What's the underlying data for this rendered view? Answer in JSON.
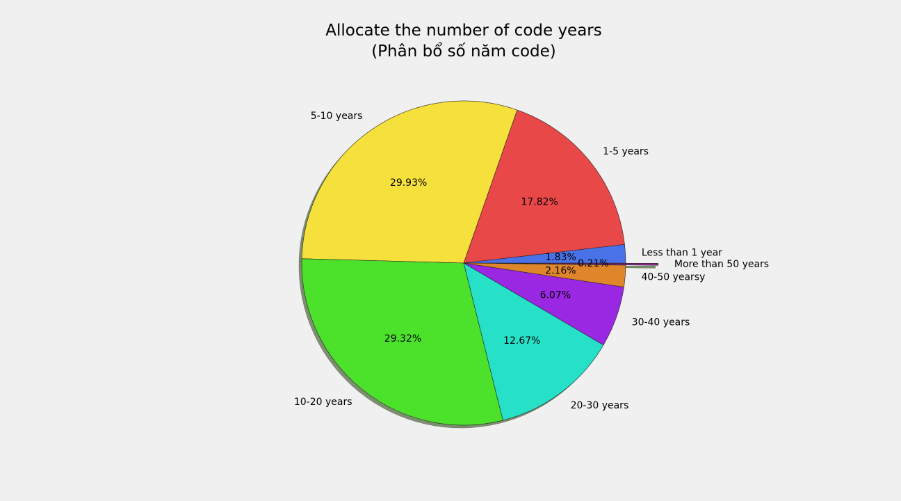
{
  "chart_data": {
    "type": "pie",
    "title": "Allocate the number of code years",
    "subtitle": "(Phân bổ số năm code)",
    "start_angle_deg": 0,
    "direction": "counterclockwise",
    "shadow": true,
    "slices": [
      {
        "label": "Less than 1 year",
        "value": 1.83,
        "pct_label": "1.83%",
        "color": "#4a72e8",
        "explode": 0
      },
      {
        "label": "1-5 years",
        "value": 17.82,
        "pct_label": "17.82%",
        "color": "#e84848",
        "explode": 0
      },
      {
        "label": "5-10 years",
        "value": 29.93,
        "pct_label": "29.93%",
        "color": "#f5e03c",
        "explode": 0
      },
      {
        "label": "10-20 years",
        "value": 29.32,
        "pct_label": "29.32%",
        "color": "#4ce22c",
        "explode": 0
      },
      {
        "label": "20-30 years",
        "value": 12.67,
        "pct_label": "12.67%",
        "color": "#26e0c8",
        "explode": 0
      },
      {
        "label": "30-40 years",
        "value": 6.07,
        "pct_label": "6.07%",
        "color": "#9a28e2",
        "explode": 0
      },
      {
        "label": "40-50 yearsy",
        "value": 2.16,
        "pct_label": "2.16%",
        "color": "#e0862a",
        "explode": 0
      },
      {
        "label": "More than 50 years",
        "value": 0.21,
        "pct_label": "0.21%",
        "color": "#8a2a8a",
        "explode": 0.2
      }
    ]
  }
}
